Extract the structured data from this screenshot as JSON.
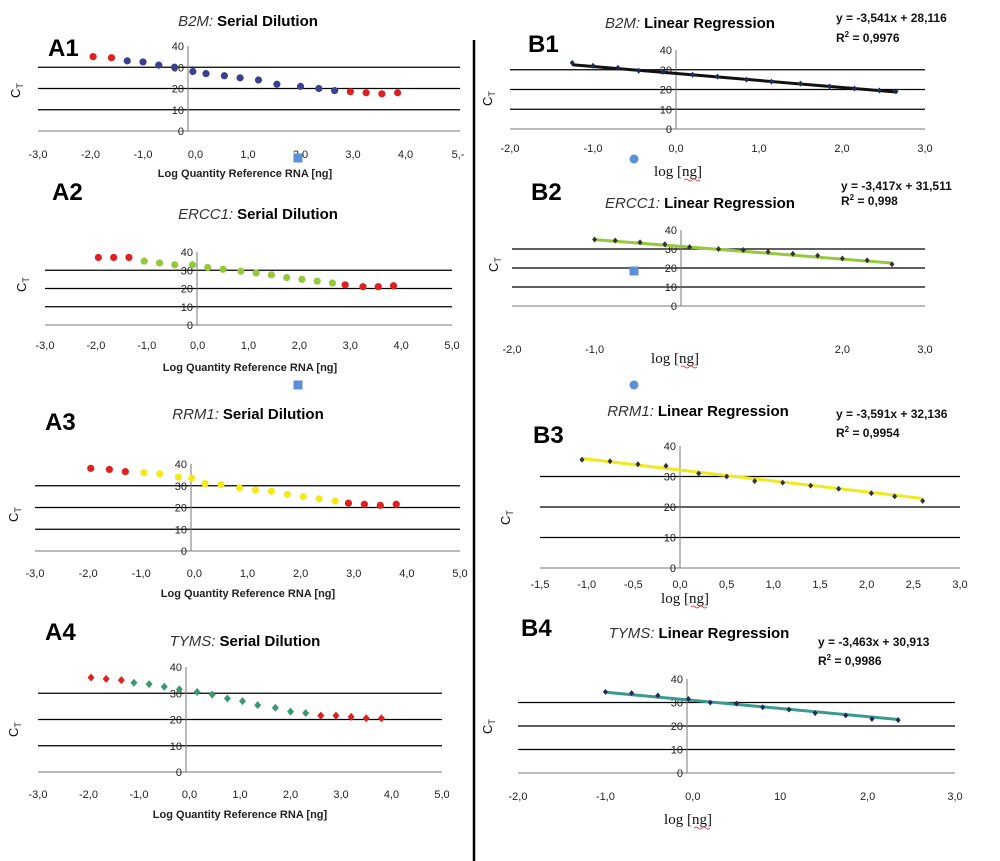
{
  "chart_data": [
    {
      "id": "A1",
      "type": "scatter",
      "panel_label": "A1",
      "title_gene": "B2M:",
      "title_rest": "Serial Dilution",
      "xlabel": "Log Quantity Reference RNA [ng]",
      "ylabel": "C",
      "ylabel_sub": "T",
      "xlim": [
        -3,
        5
      ],
      "ylim": [
        0,
        40
      ],
      "xticks": [
        "-3,0",
        "-2,0",
        "-1,0",
        "0,0",
        "1,0",
        "2,0",
        "3,0",
        "4,0",
        "5,-"
      ],
      "yticks": [
        "0",
        "10",
        "20",
        "30",
        "40"
      ],
      "gridlines": [
        10,
        20,
        30
      ],
      "points": [
        {
          "x": -1.95,
          "y": 35,
          "c": "#dd2020"
        },
        {
          "x": -1.6,
          "y": 34.5,
          "c": "#dd2020"
        },
        {
          "x": -1.3,
          "y": 33,
          "c": "#3a3f8f"
        },
        {
          "x": -1.0,
          "y": 32.5,
          "c": "#3a3f8f"
        },
        {
          "x": -0.7,
          "y": 31,
          "c": "#3a3f8f"
        },
        {
          "x": -0.4,
          "y": 30,
          "c": "#3a3f8f"
        },
        {
          "x": -0.05,
          "y": 28,
          "c": "#3a3f8f"
        },
        {
          "x": 0.2,
          "y": 27,
          "c": "#3a3f8f"
        },
        {
          "x": 0.55,
          "y": 26,
          "c": "#3a3f8f"
        },
        {
          "x": 0.85,
          "y": 25,
          "c": "#3a3f8f"
        },
        {
          "x": 1.2,
          "y": 24,
          "c": "#3a3f8f"
        },
        {
          "x": 1.55,
          "y": 22,
          "c": "#3a3f8f"
        },
        {
          "x": 2.0,
          "y": 21,
          "c": "#3a3f8f"
        },
        {
          "x": 2.35,
          "y": 20,
          "c": "#3a3f8f"
        },
        {
          "x": 2.65,
          "y": 19,
          "c": "#3a3f8f"
        },
        {
          "x": 2.95,
          "y": 18.5,
          "c": "#dd2020"
        },
        {
          "x": 3.25,
          "y": 18,
          "c": "#dd2020"
        },
        {
          "x": 3.55,
          "y": 17.5,
          "c": "#dd2020"
        },
        {
          "x": 3.85,
          "y": 18,
          "c": "#dd2020"
        }
      ]
    },
    {
      "id": "A2",
      "type": "scatter",
      "panel_label": "A2",
      "title_gene": "ERCC1:",
      "title_rest": "Serial Dilution",
      "xlabel": "Log Quantity Reference RNA [ng]",
      "ylabel": "C",
      "ylabel_sub": "T",
      "xlim": [
        -3,
        5
      ],
      "ylim": [
        0,
        40
      ],
      "xticks": [
        "-3,0",
        "-2,0",
        "-1,0",
        "0,0",
        "1,0",
        "2,0",
        "3,0",
        "4,0",
        "5,0"
      ],
      "yticks": [
        "0",
        "10",
        "20",
        "30",
        "40"
      ],
      "gridlines": [
        10,
        20,
        30
      ],
      "points": [
        {
          "x": -1.95,
          "y": 37,
          "c": "#dd2020"
        },
        {
          "x": -1.65,
          "y": 37,
          "c": "#dd2020"
        },
        {
          "x": -1.35,
          "y": 37,
          "c": "#dd2020"
        },
        {
          "x": -1.05,
          "y": 35,
          "c": "#96c83c"
        },
        {
          "x": -0.75,
          "y": 34,
          "c": "#96c83c"
        },
        {
          "x": -0.45,
          "y": 33,
          "c": "#96c83c"
        },
        {
          "x": -0.1,
          "y": 33,
          "c": "#96c83c"
        },
        {
          "x": 0.2,
          "y": 31.5,
          "c": "#96c83c"
        },
        {
          "x": 0.5,
          "y": 30.5,
          "c": "#96c83c"
        },
        {
          "x": 0.85,
          "y": 29.5,
          "c": "#96c83c"
        },
        {
          "x": 1.15,
          "y": 28.5,
          "c": "#96c83c"
        },
        {
          "x": 1.45,
          "y": 27.5,
          "c": "#96c83c"
        },
        {
          "x": 1.75,
          "y": 26,
          "c": "#96c83c"
        },
        {
          "x": 2.05,
          "y": 25,
          "c": "#96c83c"
        },
        {
          "x": 2.35,
          "y": 24,
          "c": "#96c83c"
        },
        {
          "x": 2.65,
          "y": 23,
          "c": "#96c83c"
        },
        {
          "x": 2.9,
          "y": 22,
          "c": "#dd2020"
        },
        {
          "x": 3.25,
          "y": 21,
          "c": "#dd2020"
        },
        {
          "x": 3.55,
          "y": 21,
          "c": "#dd2020"
        },
        {
          "x": 3.85,
          "y": 21.5,
          "c": "#dd2020"
        }
      ]
    },
    {
      "id": "A3",
      "type": "scatter",
      "panel_label": "A3",
      "title_gene": "RRM1:",
      "title_rest": "Serial Dilution",
      "xlabel": "Log Quantity Reference RNA [ng]",
      "ylabel": "C",
      "ylabel_sub": "T",
      "xlim": [
        -3,
        5
      ],
      "ylim": [
        0,
        40
      ],
      "xticks": [
        "-3,0",
        "-2,0",
        "-1,0",
        "0,0",
        "1,0",
        "2,0",
        "3,0",
        "4,0",
        "5,0"
      ],
      "yticks": [
        "0",
        "10",
        "20",
        "30",
        "40"
      ],
      "gridlines": [
        10,
        20,
        30
      ],
      "points": [
        {
          "x": -1.95,
          "y": 38,
          "c": "#dd2020"
        },
        {
          "x": -1.6,
          "y": 37.5,
          "c": "#dd2020"
        },
        {
          "x": -1.3,
          "y": 36.5,
          "c": "#dd2020"
        },
        {
          "x": -0.95,
          "y": 36,
          "c": "#f2ea1c"
        },
        {
          "x": -0.65,
          "y": 35.5,
          "c": "#f2ea1c"
        },
        {
          "x": -0.3,
          "y": 34,
          "c": "#f2ea1c"
        },
        {
          "x": -0.05,
          "y": 33.5,
          "c": "#f2ea1c"
        },
        {
          "x": 0.2,
          "y": 31,
          "c": "#f2ea1c"
        },
        {
          "x": 0.5,
          "y": 30.5,
          "c": "#f2ea1c"
        },
        {
          "x": 0.85,
          "y": 29,
          "c": "#f2ea1c"
        },
        {
          "x": 1.15,
          "y": 28,
          "c": "#f2ea1c"
        },
        {
          "x": 1.45,
          "y": 27.5,
          "c": "#f2ea1c"
        },
        {
          "x": 1.75,
          "y": 26,
          "c": "#f2ea1c"
        },
        {
          "x": 2.05,
          "y": 25,
          "c": "#f2ea1c"
        },
        {
          "x": 2.35,
          "y": 24,
          "c": "#f2ea1c"
        },
        {
          "x": 2.65,
          "y": 23,
          "c": "#f2ea1c"
        },
        {
          "x": 2.9,
          "y": 22,
          "c": "#dd2020"
        },
        {
          "x": 3.2,
          "y": 21.5,
          "c": "#dd2020"
        },
        {
          "x": 3.5,
          "y": 21,
          "c": "#dd2020"
        },
        {
          "x": 3.8,
          "y": 21.5,
          "c": "#dd2020"
        }
      ]
    },
    {
      "id": "A4",
      "type": "scatter",
      "panel_label": "A4",
      "title_gene": "TYMS:",
      "title_rest": "Serial Dilution",
      "xlabel": "Log Quantity Reference RNA [ng]",
      "ylabel": "C",
      "ylabel_sub": "T",
      "xlim": [
        -3,
        5
      ],
      "ylim": [
        0,
        40
      ],
      "xticks": [
        "-3,0",
        "-2,0",
        "-1,0",
        "0,0",
        "1,0",
        "2,0",
        "3,0",
        "4,0",
        "5,0"
      ],
      "yticks": [
        "0",
        "10",
        "20",
        "30",
        "40"
      ],
      "gridlines": [
        10,
        20,
        30
      ],
      "points": [
        {
          "x": -1.95,
          "y": 36,
          "c": "#dd2020"
        },
        {
          "x": -1.65,
          "y": 35.5,
          "c": "#dd2020"
        },
        {
          "x": -1.35,
          "y": 35,
          "c": "#dd2020"
        },
        {
          "x": -1.1,
          "y": 34,
          "c": "#3a9a6e"
        },
        {
          "x": -0.8,
          "y": 33.5,
          "c": "#3a9a6e"
        },
        {
          "x": -0.5,
          "y": 32.5,
          "c": "#3a9a6e"
        },
        {
          "x": -0.2,
          "y": 31.5,
          "c": "#3a9a6e"
        },
        {
          "x": 0.15,
          "y": 30.5,
          "c": "#3a9a6e"
        },
        {
          "x": 0.45,
          "y": 29.5,
          "c": "#3a9a6e"
        },
        {
          "x": 0.75,
          "y": 28,
          "c": "#3a9a6e"
        },
        {
          "x": 1.05,
          "y": 27,
          "c": "#3a9a6e"
        },
        {
          "x": 1.35,
          "y": 25.5,
          "c": "#3a9a6e"
        },
        {
          "x": 1.7,
          "y": 24.5,
          "c": "#3a9a6e"
        },
        {
          "x": 2.0,
          "y": 23,
          "c": "#3a9a6e"
        },
        {
          "x": 2.3,
          "y": 22.5,
          "c": "#3a9a6e"
        },
        {
          "x": 2.6,
          "y": 21.5,
          "c": "#dd2020"
        },
        {
          "x": 2.9,
          "y": 21.5,
          "c": "#dd2020"
        },
        {
          "x": 3.2,
          "y": 21,
          "c": "#dd2020"
        },
        {
          "x": 3.5,
          "y": 20.5,
          "c": "#dd2020"
        },
        {
          "x": 3.8,
          "y": 20.5,
          "c": "#dd2020"
        }
      ]
    },
    {
      "id": "B1",
      "type": "line",
      "panel_label": "B1",
      "title_gene": "B2M:",
      "title_rest": "Linear Regression",
      "equation": "y = -3,541x  + 28,116",
      "r2_label": "R",
      "r2_sup": "2",
      "r2_value": " = 0,9976",
      "xlabel": "log [ng]",
      "ylabel": "C",
      "ylabel_sub": "T",
      "xlim": [
        -2,
        3
      ],
      "ylim": [
        0,
        40
      ],
      "xticks": [
        "-2,0",
        "-1,0",
        "0,0",
        "1,0",
        "2,0",
        "3,0"
      ],
      "yticks": [
        "0",
        "10",
        "20",
        "30",
        "40"
      ],
      "gridlines": [
        10,
        20,
        30
      ],
      "line_color": "#111111",
      "slope": -3.541,
      "intercept": 28.116,
      "fit_range": [
        -1.25,
        2.65
      ],
      "points": [
        [
          -1.25,
          33.5
        ],
        [
          -1.0,
          32
        ],
        [
          -0.7,
          31
        ],
        [
          -0.45,
          29.5
        ],
        [
          -0.15,
          29
        ],
        [
          0.2,
          27.5
        ],
        [
          0.5,
          26.5
        ],
        [
          0.85,
          25
        ],
        [
          1.15,
          24
        ],
        [
          1.5,
          23
        ],
        [
          1.85,
          21.5
        ],
        [
          2.15,
          20.5
        ],
        [
          2.45,
          19.5
        ],
        [
          2.65,
          19
        ]
      ],
      "marker_color": "#1d2a5e"
    },
    {
      "id": "B2",
      "type": "line",
      "panel_label": "B2",
      "title_gene": "ERCC1:",
      "title_rest": "Linear Regression",
      "equation": "y = -3,417x  + 31,511",
      "r2_label": "R",
      "r2_sup": "2",
      "r2_value": " = 0,998",
      "xlabel": "log [ng]",
      "ylabel": "C",
      "ylabel_sub": "T",
      "xlim": [
        -2,
        3
      ],
      "ylim": [
        0,
        40
      ],
      "xticks": [
        "-2,0",
        "-1,0",
        "",
        "",
        "2,0",
        "3,0"
      ],
      "yticks": [
        "0",
        "10",
        "20",
        "30",
        "40"
      ],
      "gridlines": [
        10,
        20,
        30
      ],
      "line_color": "#96c83c",
      "slope": -3.417,
      "intercept": 31.511,
      "fit_range": [
        -1.0,
        2.6
      ],
      "points": [
        [
          -1.0,
          35
        ],
        [
          -0.75,
          34.5
        ],
        [
          -0.45,
          33.5
        ],
        [
          -0.15,
          32.5
        ],
        [
          0.15,
          31
        ],
        [
          0.5,
          30
        ],
        [
          0.8,
          29.5
        ],
        [
          1.1,
          28.5
        ],
        [
          1.4,
          27.5
        ],
        [
          1.7,
          26.5
        ],
        [
          2.0,
          25
        ],
        [
          2.3,
          24
        ],
        [
          2.6,
          22
        ]
      ],
      "marker_color": "#333333"
    },
    {
      "id": "B3",
      "type": "line",
      "panel_label": "B3",
      "title_gene": "RRM1:",
      "title_rest": "Linear Regression",
      "equation": "y = -3,591x  + 32,136",
      "r2_label": "R",
      "r2_sup": "2",
      "r2_value": " = 0,9954",
      "xlabel": "log [ng]",
      "ylabel": "C",
      "ylabel_sub": "T",
      "xlim": [
        -1.5,
        3
      ],
      "ylim": [
        0,
        40
      ],
      "xticks": [
        "-1,5",
        "-1,0",
        "-0,5",
        "0,0",
        "0,5",
        "1,0",
        "1,5",
        "2,0",
        "2,5",
        "3,0"
      ],
      "yticks": [
        "0",
        "10",
        "20",
        "30",
        "40"
      ],
      "gridlines": [
        10,
        20,
        30
      ],
      "line_color": "#eeea1e",
      "slope": -3.591,
      "intercept": 32.136,
      "fit_range": [
        -1.05,
        2.6
      ],
      "points": [
        [
          -1.05,
          35.5
        ],
        [
          -0.75,
          35
        ],
        [
          -0.45,
          34
        ],
        [
          -0.15,
          33.5
        ],
        [
          0.2,
          31
        ],
        [
          0.5,
          30
        ],
        [
          0.8,
          28.5
        ],
        [
          1.1,
          28
        ],
        [
          1.4,
          27
        ],
        [
          1.7,
          26
        ],
        [
          2.05,
          24.5
        ],
        [
          2.3,
          23.5
        ],
        [
          2.6,
          22
        ]
      ],
      "marker_color": "#333333"
    },
    {
      "id": "B4",
      "type": "line",
      "panel_label": "B4",
      "title_gene": "TYMS:",
      "title_rest": "Linear Regression",
      "equation": "y = -3,463x  + 30,913",
      "r2_label": "R",
      "r2_sup": "2",
      "r2_value": " = 0,9986",
      "xlabel": "log [ng]",
      "ylabel": "C",
      "ylabel_sub": "T",
      "xlim": [
        -2,
        3
      ],
      "ylim": [
        0,
        40
      ],
      "xticks": [
        "-2,0",
        "-1,0",
        "0,0",
        "10",
        "2,0",
        "3,0"
      ],
      "yticks": [
        "0",
        "10",
        "20",
        "30",
        "40"
      ],
      "gridlines": [
        10,
        20,
        30
      ],
      "line_color": "#3a9a8e",
      "slope": -3.463,
      "intercept": 30.913,
      "fit_range": [
        -1.0,
        2.35
      ],
      "points": [
        [
          -1.0,
          34.5
        ],
        [
          -0.7,
          34
        ],
        [
          -0.4,
          33
        ],
        [
          -0.05,
          31.5
        ],
        [
          0.2,
          30
        ],
        [
          0.5,
          29.5
        ],
        [
          0.8,
          28
        ],
        [
          1.1,
          27
        ],
        [
          1.4,
          25.5
        ],
        [
          1.75,
          24.5
        ],
        [
          2.05,
          23
        ],
        [
          2.35,
          22.5
        ]
      ],
      "marker_color": "#1d2a5e"
    }
  ],
  "stray_marks": [
    {
      "id": "square-a1",
      "shape": "square",
      "color": "#5b8fd6"
    },
    {
      "id": "square-a2",
      "shape": "square",
      "color": "#5b8fd6"
    },
    {
      "id": "dot-b1",
      "shape": "circle",
      "color": "#5b8fd6"
    },
    {
      "id": "square-b2",
      "shape": "square",
      "color": "#5b8fd6"
    },
    {
      "id": "dot-b2",
      "shape": "circle",
      "color": "#5b8fd6"
    }
  ]
}
